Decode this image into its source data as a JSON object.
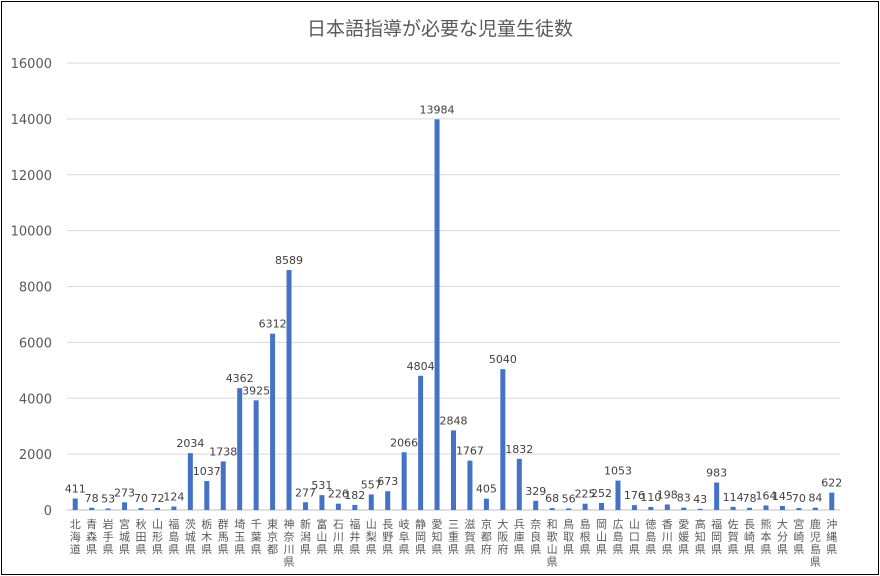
{
  "chart_data": {
    "type": "bar",
    "title": "日本語指導が必要な児童生徒数",
    "xlabel": "",
    "ylabel": "",
    "ylim": [
      0,
      16000
    ],
    "yticks": [
      "0",
      "2000",
      "4000",
      "6000",
      "8000",
      "10000",
      "12000",
      "14000",
      "16000"
    ],
    "grid": true,
    "bar_color": "#4472C4",
    "categories": [
      "北海道",
      "青森県",
      "岩手県",
      "宮城県",
      "秋田県",
      "山形県",
      "福島県",
      "茨城県",
      "栃木県",
      "群馬県",
      "埼玉県",
      "千葉県",
      "東京都",
      "神奈川県",
      "新潟県",
      "富山県",
      "石川県",
      "福井県",
      "山梨県",
      "長野県",
      "岐阜県",
      "静岡県",
      "愛知県",
      "三重県",
      "滋賀県",
      "京都府",
      "大阪府",
      "兵庫県",
      "奈良県",
      "和歌山県",
      "鳥取県",
      "島根県",
      "岡山県",
      "広島県",
      "山口県",
      "徳島県",
      "香川県",
      "愛媛県",
      "高知県",
      "福岡県",
      "佐賀県",
      "長崎県",
      "熊本県",
      "大分県",
      "宮崎県",
      "鹿児島県",
      "沖縄県"
    ],
    "values": [
      411,
      78,
      53,
      273,
      70,
      72,
      124,
      2034,
      1037,
      1738,
      4362,
      3925,
      6312,
      8589,
      277,
      531,
      226,
      182,
      557,
      673,
      2066,
      4804,
      13984,
      2848,
      1767,
      405,
      5040,
      1832,
      329,
      68,
      56,
      225,
      252,
      1053,
      176,
      110,
      198,
      83,
      43,
      983,
      114,
      78,
      164,
      145,
      70,
      84,
      622
    ]
  }
}
